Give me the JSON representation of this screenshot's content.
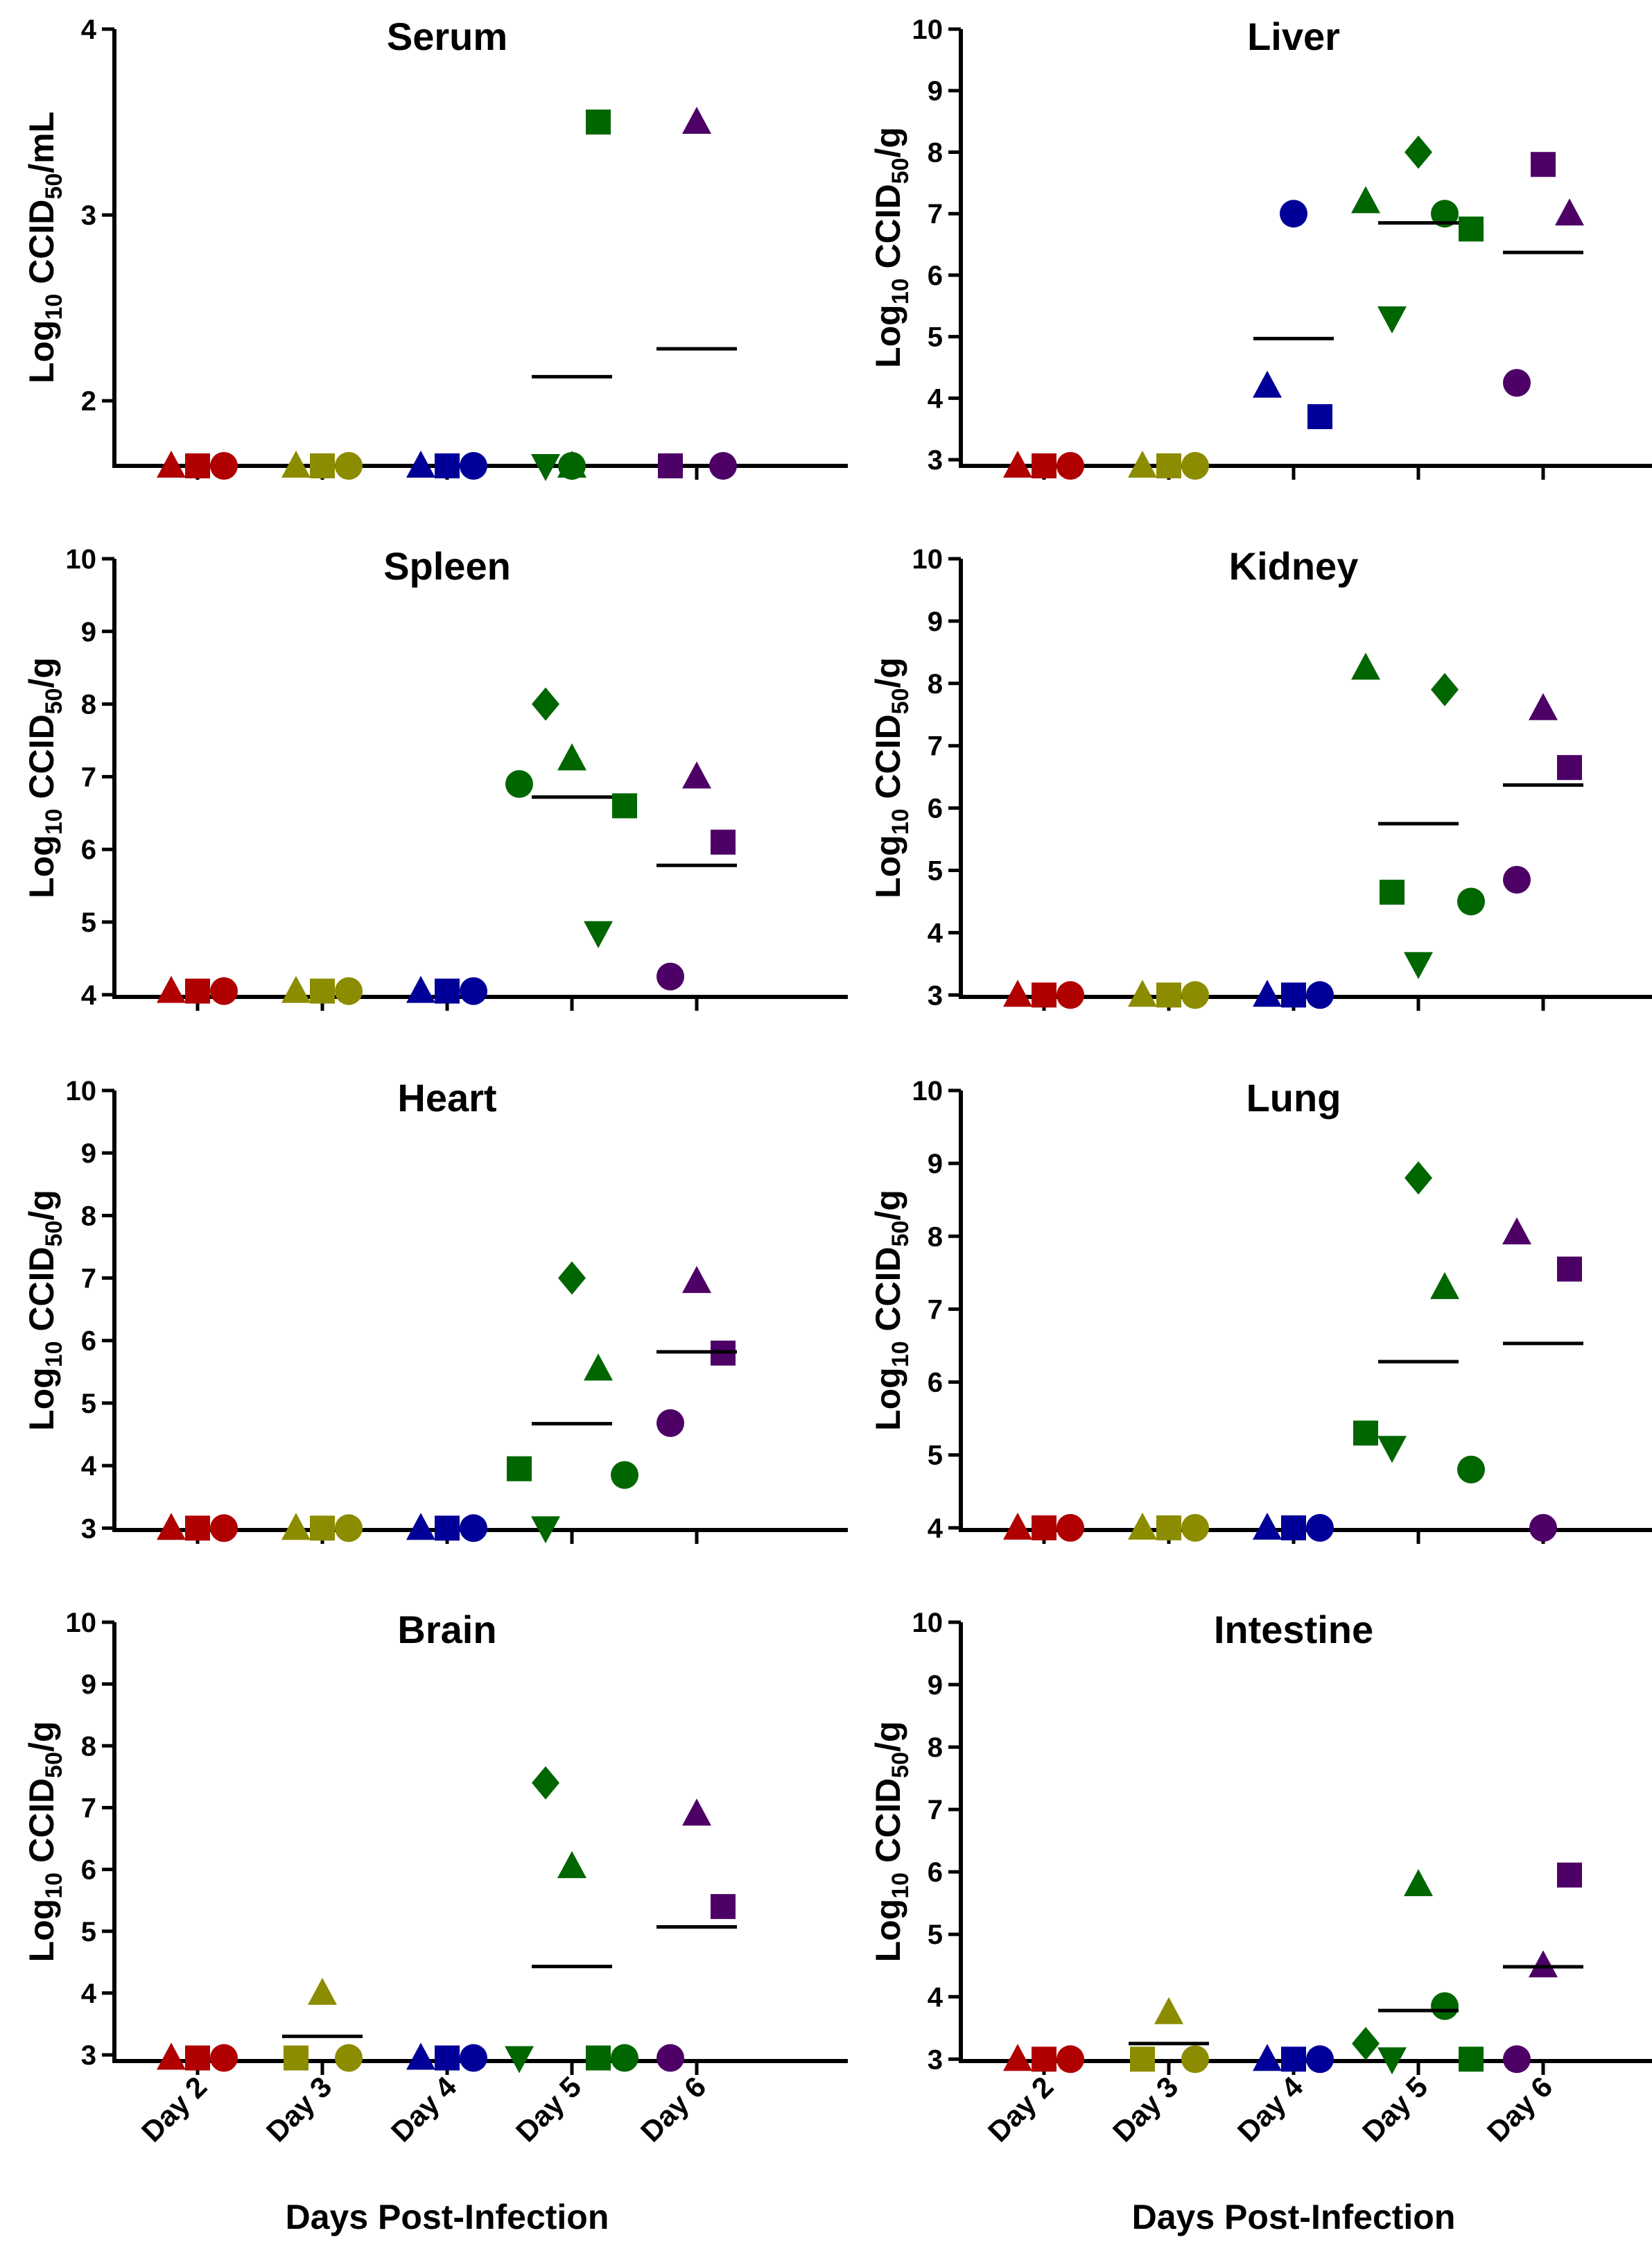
{
  "figure": {
    "xlabel": "Days Post-Infection",
    "categories": [
      "Day 2",
      "Day 3",
      "Day 4",
      "Day 5",
      "Day 6"
    ]
  },
  "colors": {
    "Day 2": "#b00000",
    "Day 3": "#8c8c00",
    "Day 4": "#000099",
    "Day 5": "#006600",
    "Day 6": "#4d0066"
  },
  "chart_data": [
    {
      "type": "scatter",
      "title": "Serum",
      "ylabel": {
        "pre": "Log",
        "sub": "10",
        "mid": " CCID",
        "sub2": "50",
        "post": "/mL"
      },
      "ylim": [
        1.65,
        4
      ],
      "yticks": [
        2,
        3,
        4
      ],
      "series": [
        {
          "name": "Day 2",
          "points": [
            {
              "m": "triangle",
              "v": 1.65
            },
            {
              "m": "square",
              "v": 1.65
            },
            {
              "m": "circle",
              "v": 1.65
            }
          ],
          "mean": null
        },
        {
          "name": "Day 3",
          "points": [
            {
              "m": "triangle",
              "v": 1.65
            },
            {
              "m": "square",
              "v": 1.65
            },
            {
              "m": "circle",
              "v": 1.65
            }
          ],
          "mean": null
        },
        {
          "name": "Day 4",
          "points": [
            {
              "m": "triangle",
              "v": 1.65
            },
            {
              "m": "square",
              "v": 1.65
            },
            {
              "m": "circle",
              "v": 1.65
            }
          ],
          "mean": null
        },
        {
          "name": "Day 5",
          "points": [
            {
              "m": "triangle-down",
              "v": 1.65
            },
            {
              "m": "triangle",
              "v": 1.65
            },
            {
              "m": "square",
              "v": 3.5
            },
            {
              "m": "circle",
              "v": 1.65
            }
          ],
          "mean": 2.13
        },
        {
          "name": "Day 6",
          "points": [
            {
              "m": "square",
              "v": 1.65
            },
            {
              "m": "triangle",
              "v": 3.5
            },
            {
              "m": "circle",
              "v": 1.65
            }
          ],
          "mean": 2.28
        }
      ]
    },
    {
      "type": "scatter",
      "title": "Liver",
      "ylabel": {
        "pre": "Log",
        "sub": "10",
        "mid": " CCID",
        "sub2": "50",
        "post": "/g"
      },
      "ylim": [
        2.9,
        10
      ],
      "yticks": [
        3,
        4,
        5,
        6,
        7,
        8,
        9,
        10
      ],
      "series": [
        {
          "name": "Day 2",
          "points": [
            {
              "m": "triangle",
              "v": 2.9
            },
            {
              "m": "square",
              "v": 2.9
            },
            {
              "m": "circle",
              "v": 2.9
            }
          ],
          "mean": null
        },
        {
          "name": "Day 3",
          "points": [
            {
              "m": "triangle",
              "v": 2.9
            },
            {
              "m": "square",
              "v": 2.9
            },
            {
              "m": "circle",
              "v": 2.9
            }
          ],
          "mean": null
        },
        {
          "name": "Day 4",
          "points": [
            {
              "m": "triangle",
              "v": 4.2
            },
            {
              "m": "circle",
              "v": 7.0
            },
            {
              "m": "square",
              "v": 3.7
            }
          ],
          "mean": 4.97
        },
        {
          "name": "Day 5",
          "points": [
            {
              "m": "triangle",
              "v": 7.2
            },
            {
              "m": "triangle-down",
              "v": 5.3
            },
            {
              "m": "diamond",
              "v": 8.0
            },
            {
              "m": "circle",
              "v": 7.0
            },
            {
              "m": "square",
              "v": 6.75
            }
          ],
          "mean": 6.85
        },
        {
          "name": "Day 6",
          "points": [
            {
              "m": "circle",
              "v": 4.25
            },
            {
              "m": "square",
              "v": 7.8
            },
            {
              "m": "triangle",
              "v": 7.0
            }
          ],
          "mean": 6.37
        }
      ]
    },
    {
      "type": "scatter",
      "title": "Spleen",
      "ylabel": {
        "pre": "Log",
        "sub": "10",
        "mid": " CCID",
        "sub2": "50",
        "post": "/g"
      },
      "ylim": [
        3.97,
        10
      ],
      "yticks": [
        4,
        5,
        6,
        7,
        8,
        9,
        10
      ],
      "series": [
        {
          "name": "Day 2",
          "points": [
            {
              "m": "triangle",
              "v": 4.05
            },
            {
              "m": "square",
              "v": 4.05
            },
            {
              "m": "circle",
              "v": 4.05
            }
          ],
          "mean": null
        },
        {
          "name": "Day 3",
          "points": [
            {
              "m": "triangle",
              "v": 4.05
            },
            {
              "m": "square",
              "v": 4.05
            },
            {
              "m": "circle",
              "v": 4.05
            }
          ],
          "mean": null
        },
        {
          "name": "Day 4",
          "points": [
            {
              "m": "triangle",
              "v": 4.05
            },
            {
              "m": "square",
              "v": 4.05
            },
            {
              "m": "circle",
              "v": 4.05
            }
          ],
          "mean": null
        },
        {
          "name": "Day 5",
          "points": [
            {
              "m": "circle",
              "v": 6.9
            },
            {
              "m": "diamond",
              "v": 8.0
            },
            {
              "m": "triangle",
              "v": 7.25
            },
            {
              "m": "triangle-down",
              "v": 4.85
            },
            {
              "m": "square",
              "v": 6.6
            }
          ],
          "mean": 6.72
        },
        {
          "name": "Day 6",
          "points": [
            {
              "m": "circle",
              "v": 4.25
            },
            {
              "m": "triangle",
              "v": 7.0
            },
            {
              "m": "square",
              "v": 6.1
            }
          ],
          "mean": 5.78
        }
      ]
    },
    {
      "type": "scatter",
      "title": "Kidney",
      "ylabel": {
        "pre": "Log",
        "sub": "10",
        "mid": " CCID",
        "sub2": "50",
        "post": "/g"
      },
      "ylim": [
        2.97,
        10
      ],
      "yticks": [
        3,
        4,
        5,
        6,
        7,
        8,
        9,
        10
      ],
      "series": [
        {
          "name": "Day 2",
          "points": [
            {
              "m": "triangle",
              "v": 3.0
            },
            {
              "m": "square",
              "v": 3.0
            },
            {
              "m": "circle",
              "v": 3.0
            }
          ],
          "mean": null
        },
        {
          "name": "Day 3",
          "points": [
            {
              "m": "triangle",
              "v": 3.0
            },
            {
              "m": "square",
              "v": 3.0
            },
            {
              "m": "circle",
              "v": 3.0
            }
          ],
          "mean": null
        },
        {
          "name": "Day 4",
          "points": [
            {
              "m": "triangle",
              "v": 3.0
            },
            {
              "m": "square",
              "v": 3.0
            },
            {
              "m": "circle",
              "v": 3.0
            }
          ],
          "mean": null
        },
        {
          "name": "Day 5",
          "points": [
            {
              "m": "triangle",
              "v": 8.25
            },
            {
              "m": "square",
              "v": 4.65
            },
            {
              "m": "triangle-down",
              "v": 3.5
            },
            {
              "m": "diamond",
              "v": 7.9
            },
            {
              "m": "circle",
              "v": 4.5
            }
          ],
          "mean": 5.75
        },
        {
          "name": "Day 6",
          "points": [
            {
              "m": "circle",
              "v": 4.85
            },
            {
              "m": "triangle",
              "v": 7.6
            },
            {
              "m": "square",
              "v": 6.65
            }
          ],
          "mean": 6.37
        }
      ]
    },
    {
      "type": "scatter",
      "title": "Heart",
      "ylabel": {
        "pre": "Log",
        "sub": "10",
        "mid": " CCID",
        "sub2": "50",
        "post": "/g"
      },
      "ylim": [
        2.97,
        10
      ],
      "yticks": [
        3,
        4,
        5,
        6,
        7,
        8,
        9,
        10
      ],
      "series": [
        {
          "name": "Day 2",
          "points": [
            {
              "m": "triangle",
              "v": 3.0
            },
            {
              "m": "square",
              "v": 3.0
            },
            {
              "m": "circle",
              "v": 3.0
            }
          ],
          "mean": null
        },
        {
          "name": "Day 3",
          "points": [
            {
              "m": "triangle",
              "v": 3.0
            },
            {
              "m": "square",
              "v": 3.0
            },
            {
              "m": "circle",
              "v": 3.0
            }
          ],
          "mean": null
        },
        {
          "name": "Day 4",
          "points": [
            {
              "m": "triangle",
              "v": 3.0
            },
            {
              "m": "square",
              "v": 3.0
            },
            {
              "m": "circle",
              "v": 3.0
            }
          ],
          "mean": null
        },
        {
          "name": "Day 5",
          "points": [
            {
              "m": "square",
              "v": 3.95
            },
            {
              "m": "triangle-down",
              "v": 3.0
            },
            {
              "m": "diamond",
              "v": 7.0
            },
            {
              "m": "triangle",
              "v": 5.55
            },
            {
              "m": "circle",
              "v": 3.85
            }
          ],
          "mean": 4.67
        },
        {
          "name": "Day 6",
          "points": [
            {
              "m": "circle",
              "v": 4.68
            },
            {
              "m": "triangle",
              "v": 6.95
            },
            {
              "m": "square",
              "v": 5.8
            }
          ],
          "mean": 5.82
        }
      ]
    },
    {
      "type": "scatter",
      "title": "Lung",
      "ylabel": {
        "pre": "Log",
        "sub": "10",
        "mid": " CCID",
        "sub2": "50",
        "post": "/g"
      },
      "ylim": [
        3.97,
        10
      ],
      "yticks": [
        4,
        5,
        6,
        7,
        8,
        9,
        10
      ],
      "series": [
        {
          "name": "Day 2",
          "points": [
            {
              "m": "triangle",
              "v": 4.0
            },
            {
              "m": "square",
              "v": 4.0
            },
            {
              "m": "circle",
              "v": 4.0
            }
          ],
          "mean": null
        },
        {
          "name": "Day 3",
          "points": [
            {
              "m": "triangle",
              "v": 4.0
            },
            {
              "m": "square",
              "v": 4.0
            },
            {
              "m": "circle",
              "v": 4.0
            }
          ],
          "mean": null
        },
        {
          "name": "Day 4",
          "points": [
            {
              "m": "triangle",
              "v": 4.0
            },
            {
              "m": "square",
              "v": 4.0
            },
            {
              "m": "circle",
              "v": 4.0
            }
          ],
          "mean": null
        },
        {
          "name": "Day 5",
          "points": [
            {
              "m": "square",
              "v": 5.3
            },
            {
              "m": "triangle-down",
              "v": 5.1
            },
            {
              "m": "diamond",
              "v": 8.8
            },
            {
              "m": "triangle",
              "v": 7.3
            },
            {
              "m": "circle",
              "v": 4.8
            }
          ],
          "mean": 6.28
        },
        {
          "name": "Day 6",
          "points": [
            {
              "m": "triangle",
              "v": 8.05
            },
            {
              "m": "circle",
              "v": 4.0
            },
            {
              "m": "square",
              "v": 7.55
            }
          ],
          "mean": 6.53
        }
      ]
    },
    {
      "type": "scatter",
      "title": "Brain",
      "ylabel": {
        "pre": "Log",
        "sub": "10",
        "mid": " CCID",
        "sub2": "50",
        "post": "/g"
      },
      "ylim": [
        2.9,
        10
      ],
      "yticks": [
        3,
        4,
        5,
        6,
        7,
        8,
        9,
        10
      ],
      "series": [
        {
          "name": "Day 2",
          "points": [
            {
              "m": "triangle",
              "v": 2.95
            },
            {
              "m": "square",
              "v": 2.95
            },
            {
              "m": "circle",
              "v": 2.95
            }
          ],
          "mean": null
        },
        {
          "name": "Day 3",
          "points": [
            {
              "m": "square",
              "v": 2.95
            },
            {
              "m": "triangle",
              "v": 4.0
            },
            {
              "m": "circle",
              "v": 2.95
            }
          ],
          "mean": 3.3
        },
        {
          "name": "Day 4",
          "points": [
            {
              "m": "triangle",
              "v": 2.95
            },
            {
              "m": "square",
              "v": 2.95
            },
            {
              "m": "circle",
              "v": 2.95
            }
          ],
          "mean": null
        },
        {
          "name": "Day 5",
          "points": [
            {
              "m": "triangle-down",
              "v": 2.95
            },
            {
              "m": "diamond",
              "v": 7.4
            },
            {
              "m": "triangle",
              "v": 6.05
            },
            {
              "m": "square",
              "v": 2.95
            },
            {
              "m": "circle",
              "v": 2.95
            }
          ],
          "mean": 4.43
        },
        {
          "name": "Day 6",
          "points": [
            {
              "m": "circle",
              "v": 2.95
            },
            {
              "m": "triangle",
              "v": 6.9
            },
            {
              "m": "square",
              "v": 5.4
            }
          ],
          "mean": 5.07
        }
      ]
    },
    {
      "type": "scatter",
      "title": "Intestine",
      "ylabel": {
        "pre": "Log",
        "sub": "10",
        "mid": " CCID",
        "sub2": "50",
        "post": "/g"
      },
      "ylim": [
        2.97,
        10
      ],
      "yticks": [
        3,
        4,
        5,
        6,
        7,
        8,
        9,
        10
      ],
      "series": [
        {
          "name": "Day 2",
          "points": [
            {
              "m": "triangle",
              "v": 3.0
            },
            {
              "m": "square",
              "v": 3.0
            },
            {
              "m": "circle",
              "v": 3.0
            }
          ],
          "mean": null
        },
        {
          "name": "Day 3",
          "points": [
            {
              "m": "square",
              "v": 3.0
            },
            {
              "m": "triangle",
              "v": 3.75
            },
            {
              "m": "circle",
              "v": 3.0
            }
          ],
          "mean": 3.25
        },
        {
          "name": "Day 4",
          "points": [
            {
              "m": "triangle",
              "v": 3.0
            },
            {
              "m": "square",
              "v": 3.0
            },
            {
              "m": "circle",
              "v": 3.0
            }
          ],
          "mean": null
        },
        {
          "name": "Day 5",
          "points": [
            {
              "m": "diamond",
              "v": 3.25
            },
            {
              "m": "triangle-down",
              "v": 3.0
            },
            {
              "m": "triangle",
              "v": 5.8
            },
            {
              "m": "circle",
              "v": 3.85
            },
            {
              "m": "square",
              "v": 3.0
            }
          ],
          "mean": 3.78
        },
        {
          "name": "Day 6",
          "points": [
            {
              "m": "circle",
              "v": 3.0
            },
            {
              "m": "triangle",
              "v": 4.5
            },
            {
              "m": "square",
              "v": 5.95
            }
          ],
          "mean": 4.48
        }
      ]
    }
  ]
}
